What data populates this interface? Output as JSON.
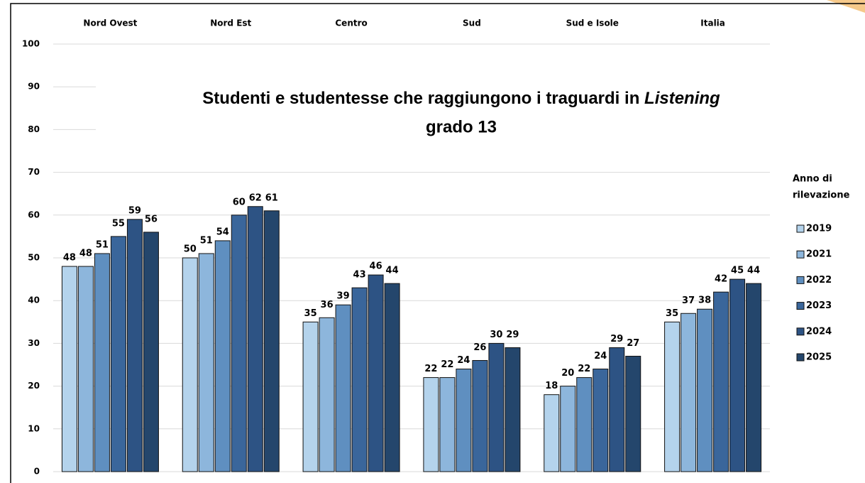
{
  "chart_data": {
    "type": "bar",
    "title": "Studenti e studentesse che raggiungono i traguardi in",
    "title_emphasis": "Listening",
    "subtitle": "grado 13",
    "categories": [
      "Nord Ovest",
      "Nord Est",
      "Centro",
      "Sud",
      "Sud e Isole",
      "Italia"
    ],
    "series": [
      {
        "name": "2019",
        "color": "#b4d3ec",
        "values": [
          48,
          50,
          35,
          22,
          18,
          35
        ]
      },
      {
        "name": "2021",
        "color": "#8db6dc",
        "values": [
          48,
          51,
          36,
          22,
          20,
          37
        ]
      },
      {
        "name": "2022",
        "color": "#5f8fc0",
        "values": [
          51,
          54,
          39,
          24,
          22,
          38
        ]
      },
      {
        "name": "2023",
        "color": "#3a669b",
        "values": [
          55,
          60,
          43,
          26,
          24,
          42
        ]
      },
      {
        "name": "2024",
        "color": "#2d5384",
        "values": [
          59,
          62,
          46,
          30,
          29,
          45
        ]
      },
      {
        "name": "2025",
        "color": "#24466c",
        "values": [
          56,
          61,
          44,
          29,
          27,
          44
        ]
      }
    ],
    "legend_title": [
      "Anno di",
      "rilevazione"
    ],
    "legend": "right",
    "ylim": [
      0,
      100
    ],
    "yticks": [
      0,
      10,
      20,
      30,
      40,
      50,
      60,
      70,
      80,
      90,
      100
    ],
    "grid": true
  }
}
